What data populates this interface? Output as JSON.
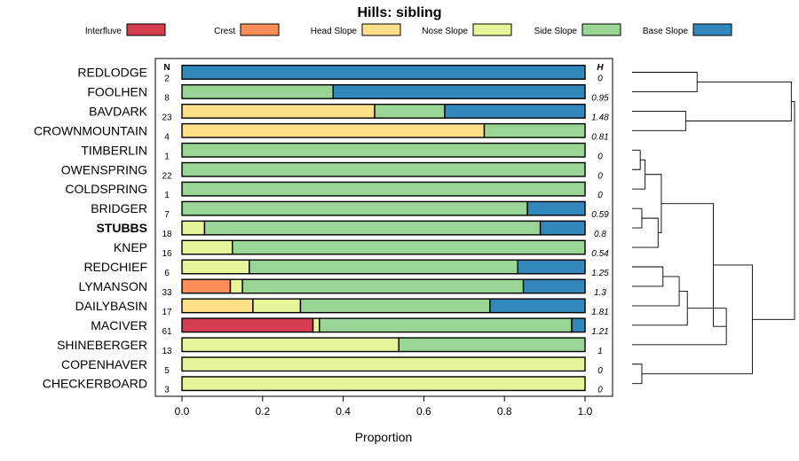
{
  "chart_data": {
    "type": "bar",
    "stacked": true,
    "orientation": "horizontal",
    "title": "Hills: sibling",
    "xlabel": "Proportion",
    "ylabel": "",
    "xlim": [
      0,
      1
    ],
    "xticks": [
      "0.0",
      "0.2",
      "0.4",
      "0.6",
      "0.8",
      "1.0"
    ],
    "n_header": "N",
    "h_header": "H",
    "legend_position": "top",
    "legend": [
      {
        "name": "Interfluve",
        "color": "#d53e4f"
      },
      {
        "name": "Crest",
        "color": "#fc8d59"
      },
      {
        "name": "Head Slope",
        "color": "#fee08b"
      },
      {
        "name": "Nose Slope",
        "color": "#e6f598"
      },
      {
        "name": "Side Slope",
        "color": "#99d594"
      },
      {
        "name": "Base Slope",
        "color": "#3288bd"
      }
    ],
    "categories": [
      "REDLODGE",
      "FOOLHEN",
      "BAVDARK",
      "CROWNMOUNTAIN",
      "TIMBERLIN",
      "OWENSPRING",
      "COLDSPRING",
      "BRIDGER",
      "STUBBS",
      "KNEP",
      "REDCHIEF",
      "LYMANSON",
      "DAILYBASIN",
      "MACIVER",
      "SHINEBERGER",
      "COPENHAVER",
      "CHECKERBOARD"
    ],
    "highlight": "STUBBS",
    "n": [
      "2",
      "8",
      "23",
      "4",
      "1",
      "22",
      "1",
      "7",
      "18",
      "16",
      "6",
      "33",
      "17",
      "61",
      "13",
      "5",
      "3"
    ],
    "h": [
      "0",
      "0.95",
      "1.48",
      "0.81",
      "0",
      "0",
      "0",
      "0.59",
      "0.8",
      "0.54",
      "1.25",
      "1.3",
      "1.81",
      "1.21",
      "1",
      "0",
      "0"
    ],
    "series": [
      {
        "name": "Interfluve",
        "values": [
          0,
          0,
          0,
          0,
          0,
          0,
          0,
          0,
          0,
          0,
          0,
          0,
          0,
          0.325,
          0,
          0,
          0
        ]
      },
      {
        "name": "Crest",
        "values": [
          0,
          0,
          0,
          0,
          0,
          0,
          0,
          0,
          0,
          0,
          0,
          0.12,
          0,
          0,
          0,
          0,
          0
        ]
      },
      {
        "name": "Head Slope",
        "values": [
          0,
          0,
          0.478,
          0.75,
          0,
          0,
          0,
          0,
          0,
          0,
          0,
          0,
          0.176,
          0,
          0,
          0,
          0
        ]
      },
      {
        "name": "Nose Slope",
        "values": [
          0,
          0,
          0,
          0,
          0,
          0,
          0,
          0,
          0.056,
          0.125,
          0.167,
          0.03,
          0.118,
          0.016,
          0.538,
          1,
          1
        ]
      },
      {
        "name": "Side Slope",
        "values": [
          0,
          0.375,
          0.174,
          0.25,
          1,
          1,
          1,
          0.857,
          0.833,
          0.875,
          0.666,
          0.697,
          0.47,
          0.626,
          0.462,
          0,
          0
        ]
      },
      {
        "name": "Base Slope",
        "values": [
          1,
          0.625,
          0.348,
          0,
          0,
          0,
          0,
          0.143,
          0.111,
          0,
          0.167,
          0.153,
          0.236,
          0.033,
          0,
          0,
          0
        ]
      }
    ],
    "dendrogram": {
      "leaves": [
        "REDLODGE",
        "FOOLHEN",
        "BAVDARK",
        "CROWNMOUNTAIN",
        "TIMBERLIN",
        "OWENSPRING",
        "COLDSPRING",
        "BRIDGER",
        "STUBBS",
        "KNEP",
        "REDCHIEF",
        "LYMANSON",
        "DAILYBASIN",
        "MACIVER",
        "SHINEBERGER",
        "COPENHAVER",
        "CHECKERBOARD"
      ],
      "merges": [
        [
          0,
          1,
          0.4
        ],
        [
          2,
          3,
          0.33
        ],
        [
          -1,
          -2,
          0.98
        ],
        [
          4,
          5,
          0.05
        ],
        [
          -4,
          6,
          0.08
        ],
        [
          7,
          8,
          0.06
        ],
        [
          -6,
          9,
          0.16
        ],
        [
          -5,
          -7,
          0.18
        ],
        [
          10,
          11,
          0.19
        ],
        [
          -9,
          12,
          0.29
        ],
        [
          -10,
          13,
          0.34
        ],
        [
          -11,
          14,
          0.58
        ],
        [
          -8,
          -12,
          0.5
        ],
        [
          15,
          16,
          0.06
        ],
        [
          -13,
          -14,
          0.74
        ],
        [
          -3,
          -15,
          1.0
        ]
      ]
    }
  }
}
